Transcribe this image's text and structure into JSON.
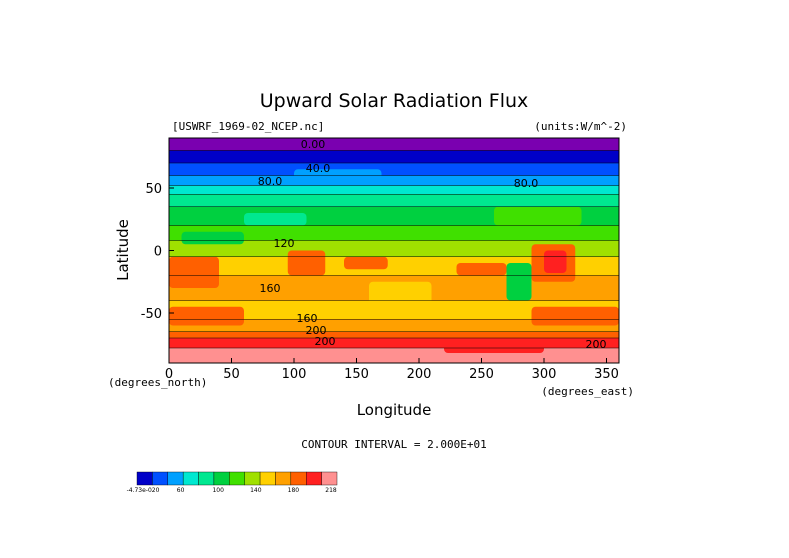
{
  "chart_data": {
    "type": "heatmap",
    "title": "Upward Solar Radiation Flux",
    "source_label": "[USWRF_1969-02_NCEP.nc]",
    "units_label": "(units:W/m^-2)",
    "xlabel": "Longitude",
    "ylabel": "Latitude",
    "x_units_label": "(degrees_east)",
    "y_units_label": "(degrees_north)",
    "xlim": [
      0,
      360
    ],
    "ylim": [
      -90,
      90
    ],
    "x_ticks": [
      0,
      50,
      100,
      150,
      200,
      250,
      300,
      350
    ],
    "y_ticks": [
      50,
      0,
      -50
    ],
    "contour_interval_text": "CONTOUR INTERVAL = 2.000E+01",
    "contour_labels": [
      "0.00",
      "40.0",
      "80.0",
      "80.0",
      "120",
      "160",
      "160",
      "200",
      "200",
      "200"
    ],
    "colorbar": {
      "tick_labels": [
        "-4.73e-020",
        "60",
        "100",
        "140",
        "180",
        "218"
      ],
      "colors": [
        "#0000c8",
        "#0050ff",
        "#00a0ff",
        "#00e8d0",
        "#00e890",
        "#00d040",
        "#40e000",
        "#a0e000",
        "#ffd000",
        "#ffa000",
        "#ff6000",
        "#ff2020",
        "#ff9090"
      ]
    },
    "latitude_bands": [
      {
        "lat": [
          80,
          90
        ],
        "color": "#7a00b0"
      },
      {
        "lat": [
          70,
          80
        ],
        "color": "#0000c8"
      },
      {
        "lat": [
          60,
          70
        ],
        "color": "#0050ff"
      },
      {
        "lat": [
          52,
          60
        ],
        "color": "#00a0ff"
      },
      {
        "lat": [
          45,
          52
        ],
        "color": "#00e8d0"
      },
      {
        "lat": [
          35,
          45
        ],
        "color": "#00e890"
      },
      {
        "lat": [
          20,
          35
        ],
        "color": "#00d040"
      },
      {
        "lat": [
          8,
          20
        ],
        "color": "#40e000"
      },
      {
        "lat": [
          -5,
          8
        ],
        "color": "#a0e000"
      },
      {
        "lat": [
          -20,
          -5
        ],
        "color": "#ffd000"
      },
      {
        "lat": [
          -40,
          -20
        ],
        "color": "#ffa000"
      },
      {
        "lat": [
          -55,
          -40
        ],
        "color": "#ffd000"
      },
      {
        "lat": [
          -65,
          -55
        ],
        "color": "#ffa000"
      },
      {
        "lat": [
          -70,
          -65
        ],
        "color": "#ff6000"
      },
      {
        "lat": [
          -78,
          -70
        ],
        "color": "#ff2020"
      },
      {
        "lat": [
          -90,
          -78
        ],
        "color": "#ff9090"
      }
    ],
    "patches": [
      {
        "lon": [
          0,
          40
        ],
        "lat": [
          -30,
          -5
        ],
        "color": "#ff6000"
      },
      {
        "lon": [
          10,
          60
        ],
        "lat": [
          5,
          15
        ],
        "color": "#00d040"
      },
      {
        "lon": [
          95,
          125
        ],
        "lat": [
          -20,
          0
        ],
        "color": "#ff6000"
      },
      {
        "lon": [
          140,
          175
        ],
        "lat": [
          -15,
          -5
        ],
        "color": "#ff6000"
      },
      {
        "lon": [
          160,
          210
        ],
        "lat": [
          -50,
          -25
        ],
        "color": "#ffd000"
      },
      {
        "lon": [
          270,
          290
        ],
        "lat": [
          -40,
          -10
        ],
        "color": "#00d040"
      },
      {
        "lon": [
          290,
          325
        ],
        "lat": [
          -25,
          5
        ],
        "color": "#ff6000"
      },
      {
        "lon": [
          300,
          318
        ],
        "lat": [
          -18,
          0
        ],
        "color": "#ff2020"
      },
      {
        "lon": [
          230,
          270
        ],
        "lat": [
          -20,
          -10
        ],
        "color": "#ff6000"
      },
      {
        "lon": [
          0,
          60
        ],
        "lat": [
          -60,
          -45
        ],
        "color": "#ff6000"
      },
      {
        "lon": [
          290,
          360
        ],
        "lat": [
          -60,
          -45
        ],
        "color": "#ff6000"
      },
      {
        "lon": [
          220,
          300
        ],
        "lat": [
          -82,
          -70
        ],
        "color": "#ff2020"
      },
      {
        "lon": [
          100,
          170
        ],
        "lat": [
          55,
          65
        ],
        "color": "#00a0ff"
      },
      {
        "lon": [
          260,
          330
        ],
        "lat": [
          20,
          35
        ],
        "color": "#40e000"
      },
      {
        "lon": [
          60,
          110
        ],
        "lat": [
          20,
          30
        ],
        "color": "#00e890"
      }
    ]
  }
}
